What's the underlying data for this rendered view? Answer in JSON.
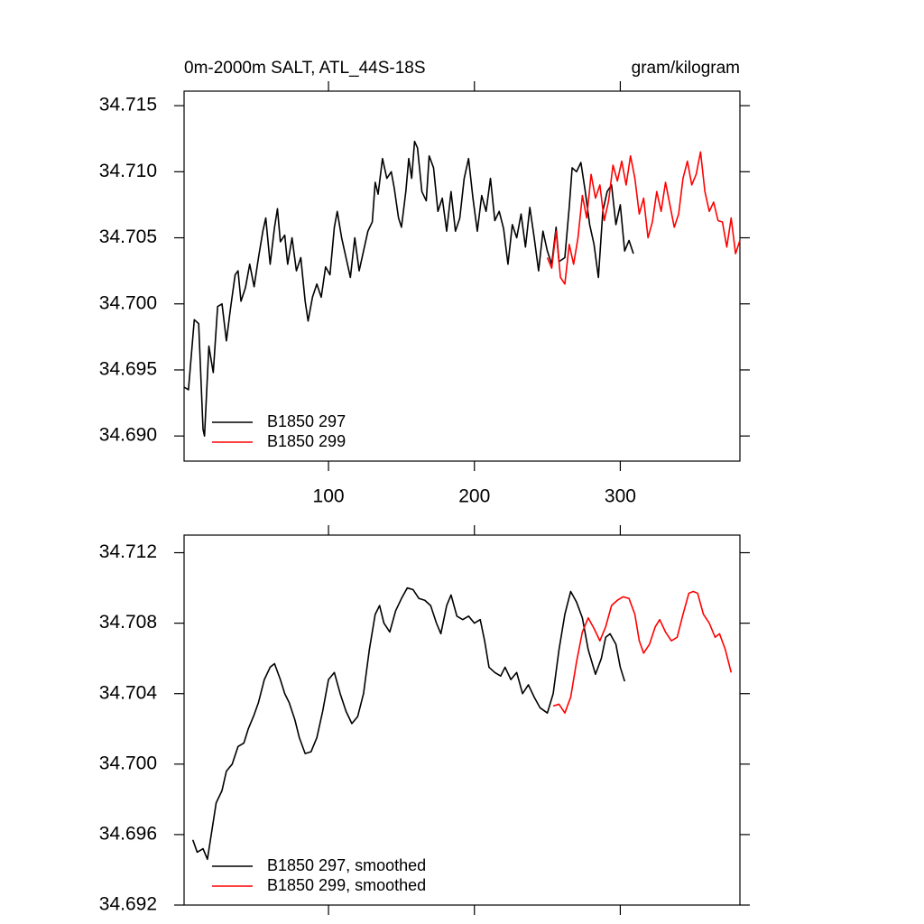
{
  "chart_data": [
    {
      "type": "line",
      "title": "0m-2000m SALT, ATL_44S-18S",
      "units": "gram/kilogram",
      "xlim": [
        1,
        382
      ],
      "xticks": [
        100,
        200,
        300
      ],
      "xtick_labels": true,
      "ylim": [
        34.6881,
        34.7161
      ],
      "yticks": [
        {
          "value": 34.69,
          "label": "34.690"
        },
        34.695,
        {
          "value": 34.7,
          "label": "34.700"
        },
        34.705,
        {
          "value": 34.71,
          "label": "34.710"
        },
        34.715
      ],
      "legend": "lower left",
      "series": [
        {
          "name": "B1850 297",
          "color": "#000000",
          "x": [
            1,
            4,
            8,
            11,
            14,
            15,
            18,
            21,
            24,
            27,
            30,
            33,
            36,
            38,
            40,
            43,
            46,
            49,
            52,
            55,
            57,
            60,
            63,
            65,
            67,
            70,
            72,
            75,
            78,
            81,
            84,
            86,
            89,
            92,
            95,
            98,
            101,
            104,
            106,
            109,
            112,
            115,
            118,
            121,
            124,
            127,
            130,
            132,
            134,
            137,
            140,
            143,
            145,
            148,
            150,
            153,
            155,
            157,
            159,
            161,
            164,
            167,
            169,
            172,
            175,
            178,
            181,
            184,
            187,
            190,
            193,
            196,
            199,
            202,
            205,
            208,
            211,
            214,
            217,
            220,
            223,
            226,
            229,
            232,
            235,
            238,
            241,
            244,
            247,
            250,
            253,
            256,
            258,
            262,
            265,
            267,
            270,
            273,
            276,
            279,
            282,
            285,
            288,
            291,
            294,
            297,
            300,
            303,
            306,
            309
          ],
          "values": [
            34.6937,
            34.6935,
            34.6988,
            34.6985,
            34.6905,
            34.69,
            34.6968,
            34.6948,
            34.6998,
            34.7,
            34.6972,
            34.6998,
            34.7022,
            34.7025,
            34.7002,
            34.7012,
            34.703,
            34.7013,
            34.7035,
            34.7055,
            34.7065,
            34.703,
            34.7058,
            34.7072,
            34.7047,
            34.7052,
            34.703,
            34.705,
            34.7025,
            34.7035,
            34.7002,
            34.6987,
            34.7005,
            34.7015,
            34.7005,
            34.7028,
            34.7022,
            34.7058,
            34.707,
            34.705,
            34.7035,
            34.702,
            34.705,
            34.7025,
            34.704,
            34.7055,
            34.7062,
            34.7092,
            34.7083,
            34.711,
            34.7095,
            34.71,
            34.7088,
            34.7065,
            34.7058,
            34.7085,
            34.711,
            34.7095,
            34.7123,
            34.7118,
            34.7085,
            34.7078,
            34.7112,
            34.7103,
            34.707,
            34.708,
            34.7055,
            34.7085,
            34.7055,
            34.7065,
            34.7095,
            34.711,
            34.708,
            34.7055,
            34.7082,
            34.707,
            34.7095,
            34.7063,
            34.707,
            34.7057,
            34.703,
            34.706,
            34.705,
            34.7068,
            34.7043,
            34.7073,
            34.705,
            34.7025,
            34.7055,
            34.704,
            34.703,
            34.7058,
            34.7032,
            34.7035,
            34.7073,
            34.7103,
            34.71,
            34.7107,
            34.7085,
            34.706,
            34.7045,
            34.702,
            34.707,
            34.7085,
            34.709,
            34.706,
            34.7075,
            34.704,
            34.7048,
            34.7038
          ]
        },
        {
          "name": "B1850 299",
          "color": "#ff0000",
          "x": [
            250,
            253,
            256,
            259,
            262,
            265,
            268,
            271,
            274,
            277,
            280,
            283,
            286,
            289,
            292,
            295,
            298,
            301,
            304,
            307,
            310,
            313,
            316,
            319,
            322,
            325,
            328,
            331,
            334,
            337,
            340,
            343,
            346,
            349,
            352,
            355,
            358,
            361,
            364,
            367,
            370,
            373,
            376,
            379,
            382
          ],
          "values": [
            34.7035,
            34.7027,
            34.7055,
            34.702,
            34.7015,
            34.7045,
            34.703,
            34.705,
            34.7082,
            34.7065,
            34.7098,
            34.708,
            34.709,
            34.7063,
            34.7078,
            34.7105,
            34.7093,
            34.7108,
            34.709,
            34.7112,
            34.7095,
            34.7068,
            34.708,
            34.705,
            34.7062,
            34.7085,
            34.707,
            34.7092,
            34.7075,
            34.7058,
            34.7068,
            34.7095,
            34.7108,
            34.709,
            34.7098,
            34.7115,
            34.7085,
            34.707,
            34.7077,
            34.7063,
            34.7062,
            34.7043,
            34.7065,
            34.7038,
            34.7048
          ]
        }
      ]
    },
    {
      "type": "line",
      "xlim": [
        1,
        382
      ],
      "xticks": [
        100,
        200,
        300
      ],
      "xtick_labels": false,
      "ylim": [
        34.692,
        34.713
      ],
      "yticks": [
        34.692,
        34.696,
        {
          "value": 34.7,
          "label": "34.700"
        },
        34.704,
        34.708,
        34.712
      ],
      "legend": "lower left",
      "series": [
        {
          "name": "B1850 297, smoothed",
          "color": "#000000",
          "x": [
            7,
            10,
            14,
            17,
            20,
            23,
            27,
            30,
            34,
            38,
            42,
            45,
            49,
            52,
            56,
            60,
            63,
            67,
            70,
            73,
            77,
            80,
            84,
            88,
            92,
            96,
            100,
            104,
            108,
            112,
            116,
            120,
            124,
            128,
            132,
            135,
            138,
            142,
            146,
            150,
            154,
            158,
            162,
            166,
            170,
            174,
            177,
            181,
            184,
            188,
            192,
            196,
            200,
            204,
            207,
            210,
            214,
            218,
            221,
            225,
            229,
            233,
            237,
            241,
            245,
            250,
            254,
            258,
            262,
            266,
            270,
            274,
            278,
            283,
            287,
            290,
            293,
            297,
            300,
            303
          ],
          "values": [
            34.6957,
            34.695,
            34.6952,
            34.6946,
            34.6962,
            34.6978,
            34.6985,
            34.6996,
            34.7,
            34.701,
            34.7012,
            34.702,
            34.7028,
            34.7035,
            34.7048,
            34.7055,
            34.7057,
            34.7048,
            34.704,
            34.7035,
            34.7025,
            34.7015,
            34.7006,
            34.7007,
            34.7015,
            34.703,
            34.7048,
            34.7052,
            34.704,
            34.703,
            34.7023,
            34.7027,
            34.704,
            34.7065,
            34.7085,
            34.709,
            34.708,
            34.7075,
            34.7087,
            34.7094,
            34.71,
            34.7099,
            34.7094,
            34.7093,
            34.709,
            34.708,
            34.7074,
            34.709,
            34.7096,
            34.7084,
            34.7082,
            34.7084,
            34.708,
            34.7082,
            34.707,
            34.7055,
            34.7052,
            34.705,
            34.7055,
            34.7048,
            34.7052,
            34.704,
            34.7045,
            34.7038,
            34.7032,
            34.7029,
            34.704,
            34.7065,
            34.7085,
            34.7098,
            34.7092,
            34.7083,
            34.7065,
            34.7051,
            34.706,
            34.7072,
            34.7074,
            34.7068,
            34.7055,
            34.7047
          ]
        },
        {
          "name": "B1850 299, smoothed",
          "color": "#ff0000",
          "x": [
            254,
            258,
            262,
            266,
            270,
            274,
            278,
            282,
            286,
            290,
            294,
            298,
            302,
            306,
            310,
            313,
            316,
            320,
            324,
            327,
            331,
            335,
            339,
            343,
            347,
            350,
            353,
            357,
            361,
            365,
            368,
            372,
            376
          ],
          "values": [
            34.7033,
            34.7034,
            34.7029,
            34.7038,
            34.7058,
            34.7075,
            34.7083,
            34.7077,
            34.707,
            34.7078,
            34.709,
            34.7093,
            34.7095,
            34.7094,
            34.7085,
            34.707,
            34.7063,
            34.7068,
            34.7078,
            34.7082,
            34.7075,
            34.707,
            34.7072,
            34.7085,
            34.7097,
            34.7098,
            34.7097,
            34.7085,
            34.708,
            34.7072,
            34.7074,
            34.7065,
            34.7052
          ]
        }
      ]
    }
  ]
}
